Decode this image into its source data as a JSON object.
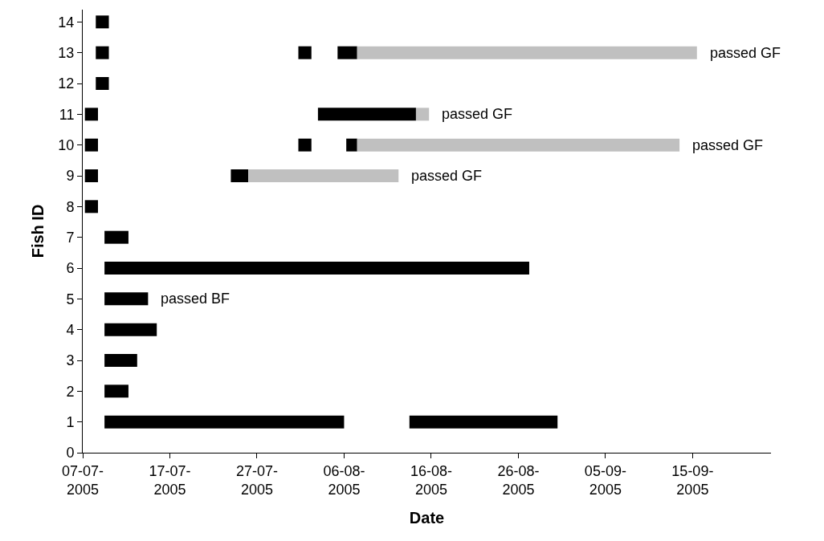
{
  "chart_data": {
    "type": "line",
    "xlabel": "Date",
    "ylabel": "Fish ID",
    "series": [
      {
        "color": "#000000",
        "x": [
          "2005-07-08T12:00",
          "2005-07-10"
        ],
        "values": [
          14,
          14
        ]
      },
      {
        "color": "#000000",
        "x": [
          "2005-07-08T12:00",
          "2005-07-10"
        ],
        "values": [
          13,
          13
        ]
      },
      {
        "color": "#000000",
        "x": [
          "2005-07-31T18:00",
          "2005-08-02T06:00"
        ],
        "values": [
          13,
          13
        ]
      },
      {
        "color": "#000000",
        "x": [
          "2005-08-05T06:00",
          "2005-08-07T12:00"
        ],
        "values": [
          13,
          13
        ]
      },
      {
        "color": "#c0c0c0",
        "x": [
          "2005-08-07T12:00",
          "2005-09-15T12:00"
        ],
        "values": [
          13,
          13
        ]
      },
      {
        "color": "#000000",
        "x": [
          "2005-07-08T12:00",
          "2005-07-10"
        ],
        "values": [
          12,
          12
        ]
      },
      {
        "color": "#000000",
        "x": [
          "2005-07-07T06:00",
          "2005-07-08T18:00"
        ],
        "values": [
          11,
          11
        ]
      },
      {
        "color": "#000000",
        "x": [
          "2005-08-03",
          "2005-08-14T06:00"
        ],
        "values": [
          11,
          11
        ]
      },
      {
        "color": "#c0c0c0",
        "x": [
          "2005-08-14T06:00",
          "2005-08-15T18:00"
        ],
        "values": [
          11,
          11
        ]
      },
      {
        "color": "#000000",
        "x": [
          "2005-07-07T06:00",
          "2005-07-08T18:00"
        ],
        "values": [
          10,
          10
        ]
      },
      {
        "color": "#000000",
        "x": [
          "2005-07-31T18:00",
          "2005-08-02T06:00"
        ],
        "values": [
          10,
          10
        ]
      },
      {
        "color": "#000000",
        "x": [
          "2005-08-06T06:00",
          "2005-08-07T12:00"
        ],
        "values": [
          10,
          10
        ]
      },
      {
        "color": "#c0c0c0",
        "x": [
          "2005-08-07T12:00",
          "2005-09-13T12:00"
        ],
        "values": [
          10,
          10
        ]
      },
      {
        "color": "#000000",
        "x": [
          "2005-07-07T06:00",
          "2005-07-08T18:00"
        ],
        "values": [
          9,
          9
        ]
      },
      {
        "color": "#000000",
        "x": [
          "2005-07-24",
          "2005-07-26"
        ],
        "values": [
          9,
          9
        ]
      },
      {
        "color": "#c0c0c0",
        "x": [
          "2005-07-26",
          "2005-08-12T06:00"
        ],
        "values": [
          9,
          9
        ]
      },
      {
        "color": "#000000",
        "x": [
          "2005-07-07T06:00",
          "2005-07-08T18:00"
        ],
        "values": [
          8,
          8
        ]
      },
      {
        "color": "#000000",
        "x": [
          "2005-07-09T12:00",
          "2005-07-12T06:00"
        ],
        "values": [
          7,
          7
        ]
      },
      {
        "color": "#000000",
        "x": [
          "2005-07-09T12:00",
          "2005-08-27T06:00"
        ],
        "values": [
          6,
          6
        ]
      },
      {
        "color": "#000000",
        "x": [
          "2005-07-09T12:00",
          "2005-07-14T12:00"
        ],
        "values": [
          5,
          5
        ]
      },
      {
        "color": "#000000",
        "x": [
          "2005-07-09T12:00",
          "2005-07-15T12:00"
        ],
        "values": [
          4,
          4
        ]
      },
      {
        "color": "#000000",
        "x": [
          "2005-07-09T12:00",
          "2005-07-13T06:00"
        ],
        "values": [
          3,
          3
        ]
      },
      {
        "color": "#000000",
        "x": [
          "2005-07-09T12:00",
          "2005-07-12T06:00"
        ],
        "values": [
          2,
          2
        ]
      },
      {
        "color": "#000000",
        "x": [
          "2005-07-09T12:00",
          "2005-08-06"
        ],
        "values": [
          1,
          1
        ]
      },
      {
        "color": "#000000",
        "x": [
          "2005-08-13T12:00",
          "2005-08-30T12:00"
        ],
        "values": [
          1,
          1
        ]
      }
    ],
    "annotations": [
      {
        "text": "passed GF",
        "x": "2005-09-15T12:00",
        "y": 13
      },
      {
        "text": "passed GF",
        "x": "2005-08-15T18:00",
        "y": 11
      },
      {
        "text": "passed GF",
        "x": "2005-09-13T12:00",
        "y": 10
      },
      {
        "text": "passed GF",
        "x": "2005-08-12T06:00",
        "y": 9
      },
      {
        "text": "passed BF",
        "x": "2005-07-14T12:00",
        "y": 5
      }
    ],
    "xlim": [
      "2005-07-07",
      "2005-09-24"
    ],
    "xticks": [
      {
        "value": "2005-07-07",
        "label": "07-07-2005"
      },
      {
        "value": "2005-07-17",
        "label": "17-07-2005"
      },
      {
        "value": "2005-07-27",
        "label": "27-07-2005"
      },
      {
        "value": "2005-08-06",
        "label": "06-08-2005"
      },
      {
        "value": "2005-08-16",
        "label": "16-08-2005"
      },
      {
        "value": "2005-08-26",
        "label": "26-08-2005"
      },
      {
        "value": "2005-09-05",
        "label": "05-09-2005"
      },
      {
        "value": "2005-09-15",
        "label": "15-09-2005"
      }
    ],
    "ylim": [
      0,
      14.4
    ],
    "yticks": [
      0,
      1,
      2,
      3,
      4,
      5,
      6,
      7,
      8,
      9,
      10,
      11,
      12,
      13,
      14
    ]
  }
}
